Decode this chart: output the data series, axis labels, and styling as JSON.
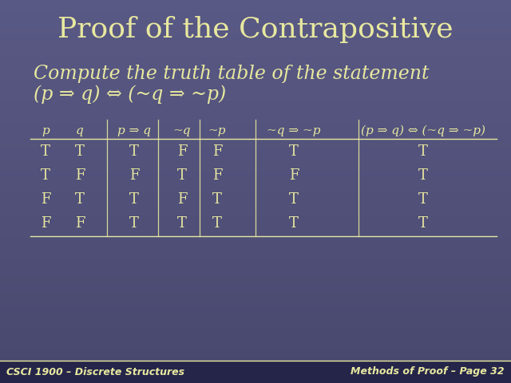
{
  "title": "Proof of the Contrapositive",
  "subtitle_line1": "Compute the truth table of the statement",
  "subtitle_line2": "(p ⇒ q) ⇔ (~q ⇒ ~p)",
  "bg_color_top": "#595985",
  "bg_color_bottom": "#48486e",
  "text_color": "#e8e8a0",
  "footer_bg": "#25254a",
  "footer_left": "CSCI 1900 – Discrete Structures",
  "footer_right": "Methods of Proof – Page 32",
  "col_headers": [
    "p",
    "q",
    "p ⇒ q",
    "~q",
    "~p",
    "~q ⇒ ~p",
    "(p ⇒ q) ⇔ (~q ⇒ ~p)"
  ],
  "table_data": [
    [
      "T",
      "T",
      "T",
      "F",
      "F",
      "T",
      "T"
    ],
    [
      "T",
      "F",
      "F",
      "T",
      "F",
      "F",
      "T"
    ],
    [
      "F",
      "T",
      "T",
      "F",
      "T",
      "T",
      "T"
    ],
    [
      "F",
      "F",
      "T",
      "T",
      "T",
      "T",
      "T"
    ]
  ],
  "title_fontsize": 26,
  "subtitle_fontsize": 17,
  "table_header_fontsize": 11,
  "table_data_fontsize": 13,
  "footer_fontsize": 9
}
